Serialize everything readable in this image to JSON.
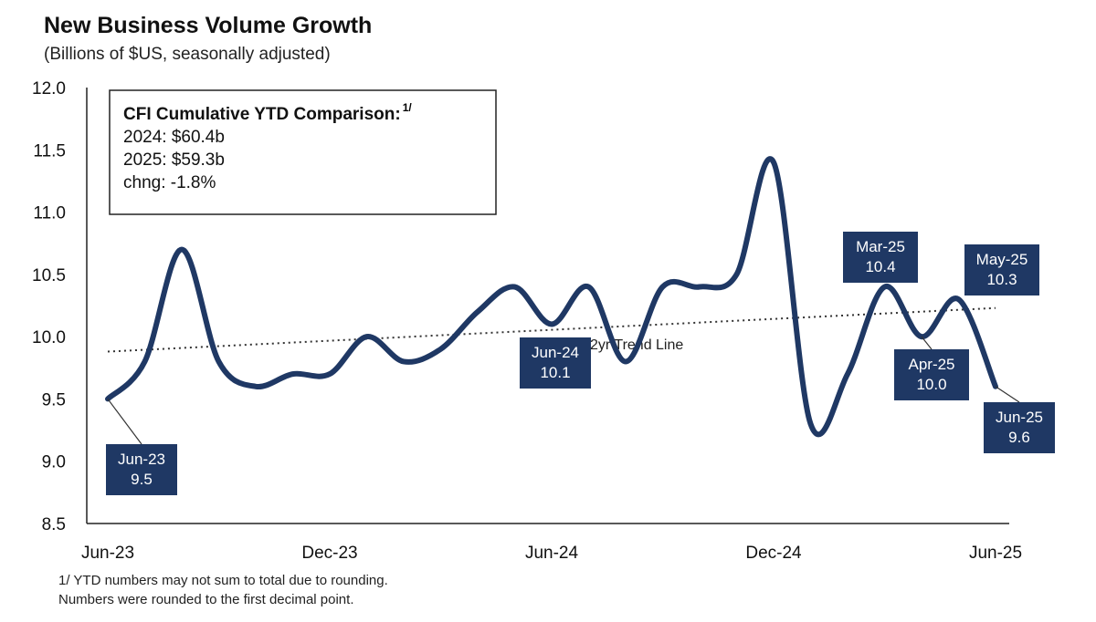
{
  "title": "New Business Volume Growth",
  "subtitle": "(Billions of $US, seasonally adjusted)",
  "ytd_box": {
    "heading": "CFI Cumulative YTD Comparison:",
    "heading_sup": "1/",
    "lines": [
      "2024: $60.4b",
      "2025: $59.3b",
      "chng: -1.8%"
    ]
  },
  "footnote": [
    "1/ YTD numbers may not sum to total due to rounding.",
    "Numbers were rounded to the first decimal point."
  ],
  "colors": {
    "series": "#1f3864",
    "callout_bg": "#1f3864",
    "callout_text": "#ffffff",
    "trend": "#333333",
    "axis": "#222222"
  },
  "chart_data": {
    "type": "line",
    "title": "New Business Volume Growth",
    "subtitle": "(Billions of $US, seasonally adjusted)",
    "x": [
      "Jun-23",
      "Jul-23",
      "Aug-23",
      "Sep-23",
      "Oct-23",
      "Nov-23",
      "Dec-23",
      "Jan-24",
      "Feb-24",
      "Mar-24",
      "Apr-24",
      "May-24",
      "Jun-24",
      "Jul-24",
      "Aug-24",
      "Sep-24",
      "Oct-24",
      "Nov-24",
      "Dec-24",
      "Jan-25",
      "Feb-25",
      "Mar-25",
      "Apr-25",
      "May-25",
      "Jun-25"
    ],
    "series": [
      {
        "values": [
          9.5,
          9.8,
          10.7,
          9.8,
          9.6,
          9.7,
          9.7,
          10.0,
          9.8,
          9.9,
          10.2,
          10.4,
          10.1,
          10.4,
          9.8,
          10.4,
          10.4,
          10.5,
          11.4,
          9.3,
          9.7,
          10.4,
          10.0,
          10.3,
          9.6
        ]
      }
    ],
    "x_tick_labels": [
      "Jun-23",
      "Dec-23",
      "Jun-24",
      "Dec-24",
      "Jun-25"
    ],
    "x_tick_values": [
      "Jun-23",
      "Dec-23",
      "Jun-24",
      "Dec-24",
      "Jun-25"
    ],
    "y_tick_labels": [
      "8.5",
      "9.0",
      "9.5",
      "10.0",
      "10.5",
      "11.0",
      "11.5",
      "12.0"
    ],
    "y_tick_values": [
      8.5,
      9.0,
      9.5,
      10.0,
      10.5,
      11.0,
      11.5,
      12.0
    ],
    "ylim": [
      8.5,
      12.0
    ],
    "grid": false,
    "trend_line": {
      "label": "2yr Trend Line",
      "start": 9.88,
      "end": 10.23
    },
    "annotations": [
      {
        "x": "Jun-23",
        "y": 9.5,
        "lines": [
          "Jun-23",
          "9.5"
        ]
      },
      {
        "x": "Jun-24",
        "y": 10.1,
        "lines": [
          "Jun-24",
          "10.1"
        ]
      },
      {
        "x": "Mar-25",
        "y": 10.4,
        "lines": [
          "Mar-25",
          "10.4"
        ]
      },
      {
        "x": "Apr-25",
        "y": 10.0,
        "lines": [
          "Apr-25",
          "10.0"
        ]
      },
      {
        "x": "May-25",
        "y": 10.3,
        "lines": [
          "May-25",
          "10.3"
        ]
      },
      {
        "x": "Jun-25",
        "y": 9.6,
        "lines": [
          "Jun-25",
          "9.6"
        ]
      }
    ]
  }
}
